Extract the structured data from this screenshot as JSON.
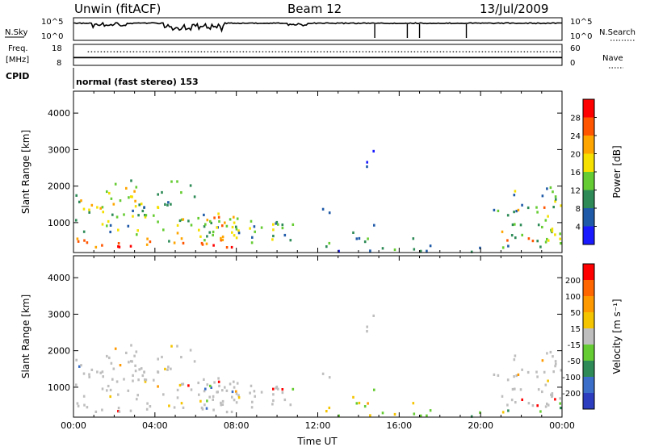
{
  "header": {
    "station": "Unwin (fitACF)",
    "beam": "Beam 12",
    "date": "13/Jul/2009"
  },
  "colors": {
    "power_scale": [
      "#1a1aff",
      "#1f5aa8",
      "#2e8b57",
      "#66cc33",
      "#f5e000",
      "#ffa500",
      "#ff5500",
      "#ff0000"
    ],
    "velocity_scale": [
      "#2d3dbf",
      "#3a6ec8",
      "#2e8b57",
      "#66cc33",
      "#bebebe",
      "#f5c400",
      "#ff9900",
      "#ff6600",
      "#ff0000"
    ],
    "noise": "#000000"
  },
  "chart_data": [
    {
      "type": "line",
      "name": "noise-search-panel",
      "left_label": "N.Sky",
      "right_label": "N.Search",
      "left_ticks": [
        "10^5",
        "10^0"
      ],
      "right_ticks": [
        "10^5",
        "10^0"
      ],
      "x_range_hours": [
        0,
        24
      ],
      "ylim_log10": [
        0,
        5
      ]
    },
    {
      "type": "line",
      "name": "frequency-nave-panel",
      "left_label": "Freq.",
      "left_unit": "[MHz]",
      "right_label": "Nave",
      "left_ticks": [
        "18",
        "8"
      ],
      "right_ticks": [
        "60",
        "0"
      ],
      "freq_level": 11,
      "nave_level": 38
    },
    {
      "type": "table",
      "name": "cpid-panel",
      "label": "CPID",
      "value": "normal (fast stereo) 153"
    },
    {
      "type": "heatmap",
      "name": "power-panel",
      "ylabel": "Slant Range [km]",
      "ylim": [
        180,
        4600
      ],
      "yticks": [
        "1000",
        "2000",
        "3000",
        "4000"
      ],
      "xlim_hours": [
        0,
        24
      ],
      "colorbar_label": "Power [dB]",
      "colorbar_ticks": [
        "4",
        "8",
        "12",
        "16",
        "20",
        "24",
        "28"
      ],
      "colorbar_range": [
        0,
        32
      ]
    },
    {
      "type": "heatmap",
      "name": "velocity-panel",
      "ylabel": "Slant Range [km]",
      "ylim": [
        180,
        4600
      ],
      "yticks": [
        "1000",
        "2000",
        "3000",
        "4000"
      ],
      "xlim_hours": [
        0,
        24
      ],
      "xticks": [
        "00:00",
        "04:00",
        "08:00",
        "12:00",
        "16:00",
        "20:00",
        "00:00"
      ],
      "xlabel": "Time UT",
      "colorbar_label": "Velocity [m s⁻¹]",
      "colorbar_ticks": [
        "200",
        "100",
        "50",
        "15",
        "-15",
        "-50",
        "-100",
        "-200"
      ]
    }
  ]
}
